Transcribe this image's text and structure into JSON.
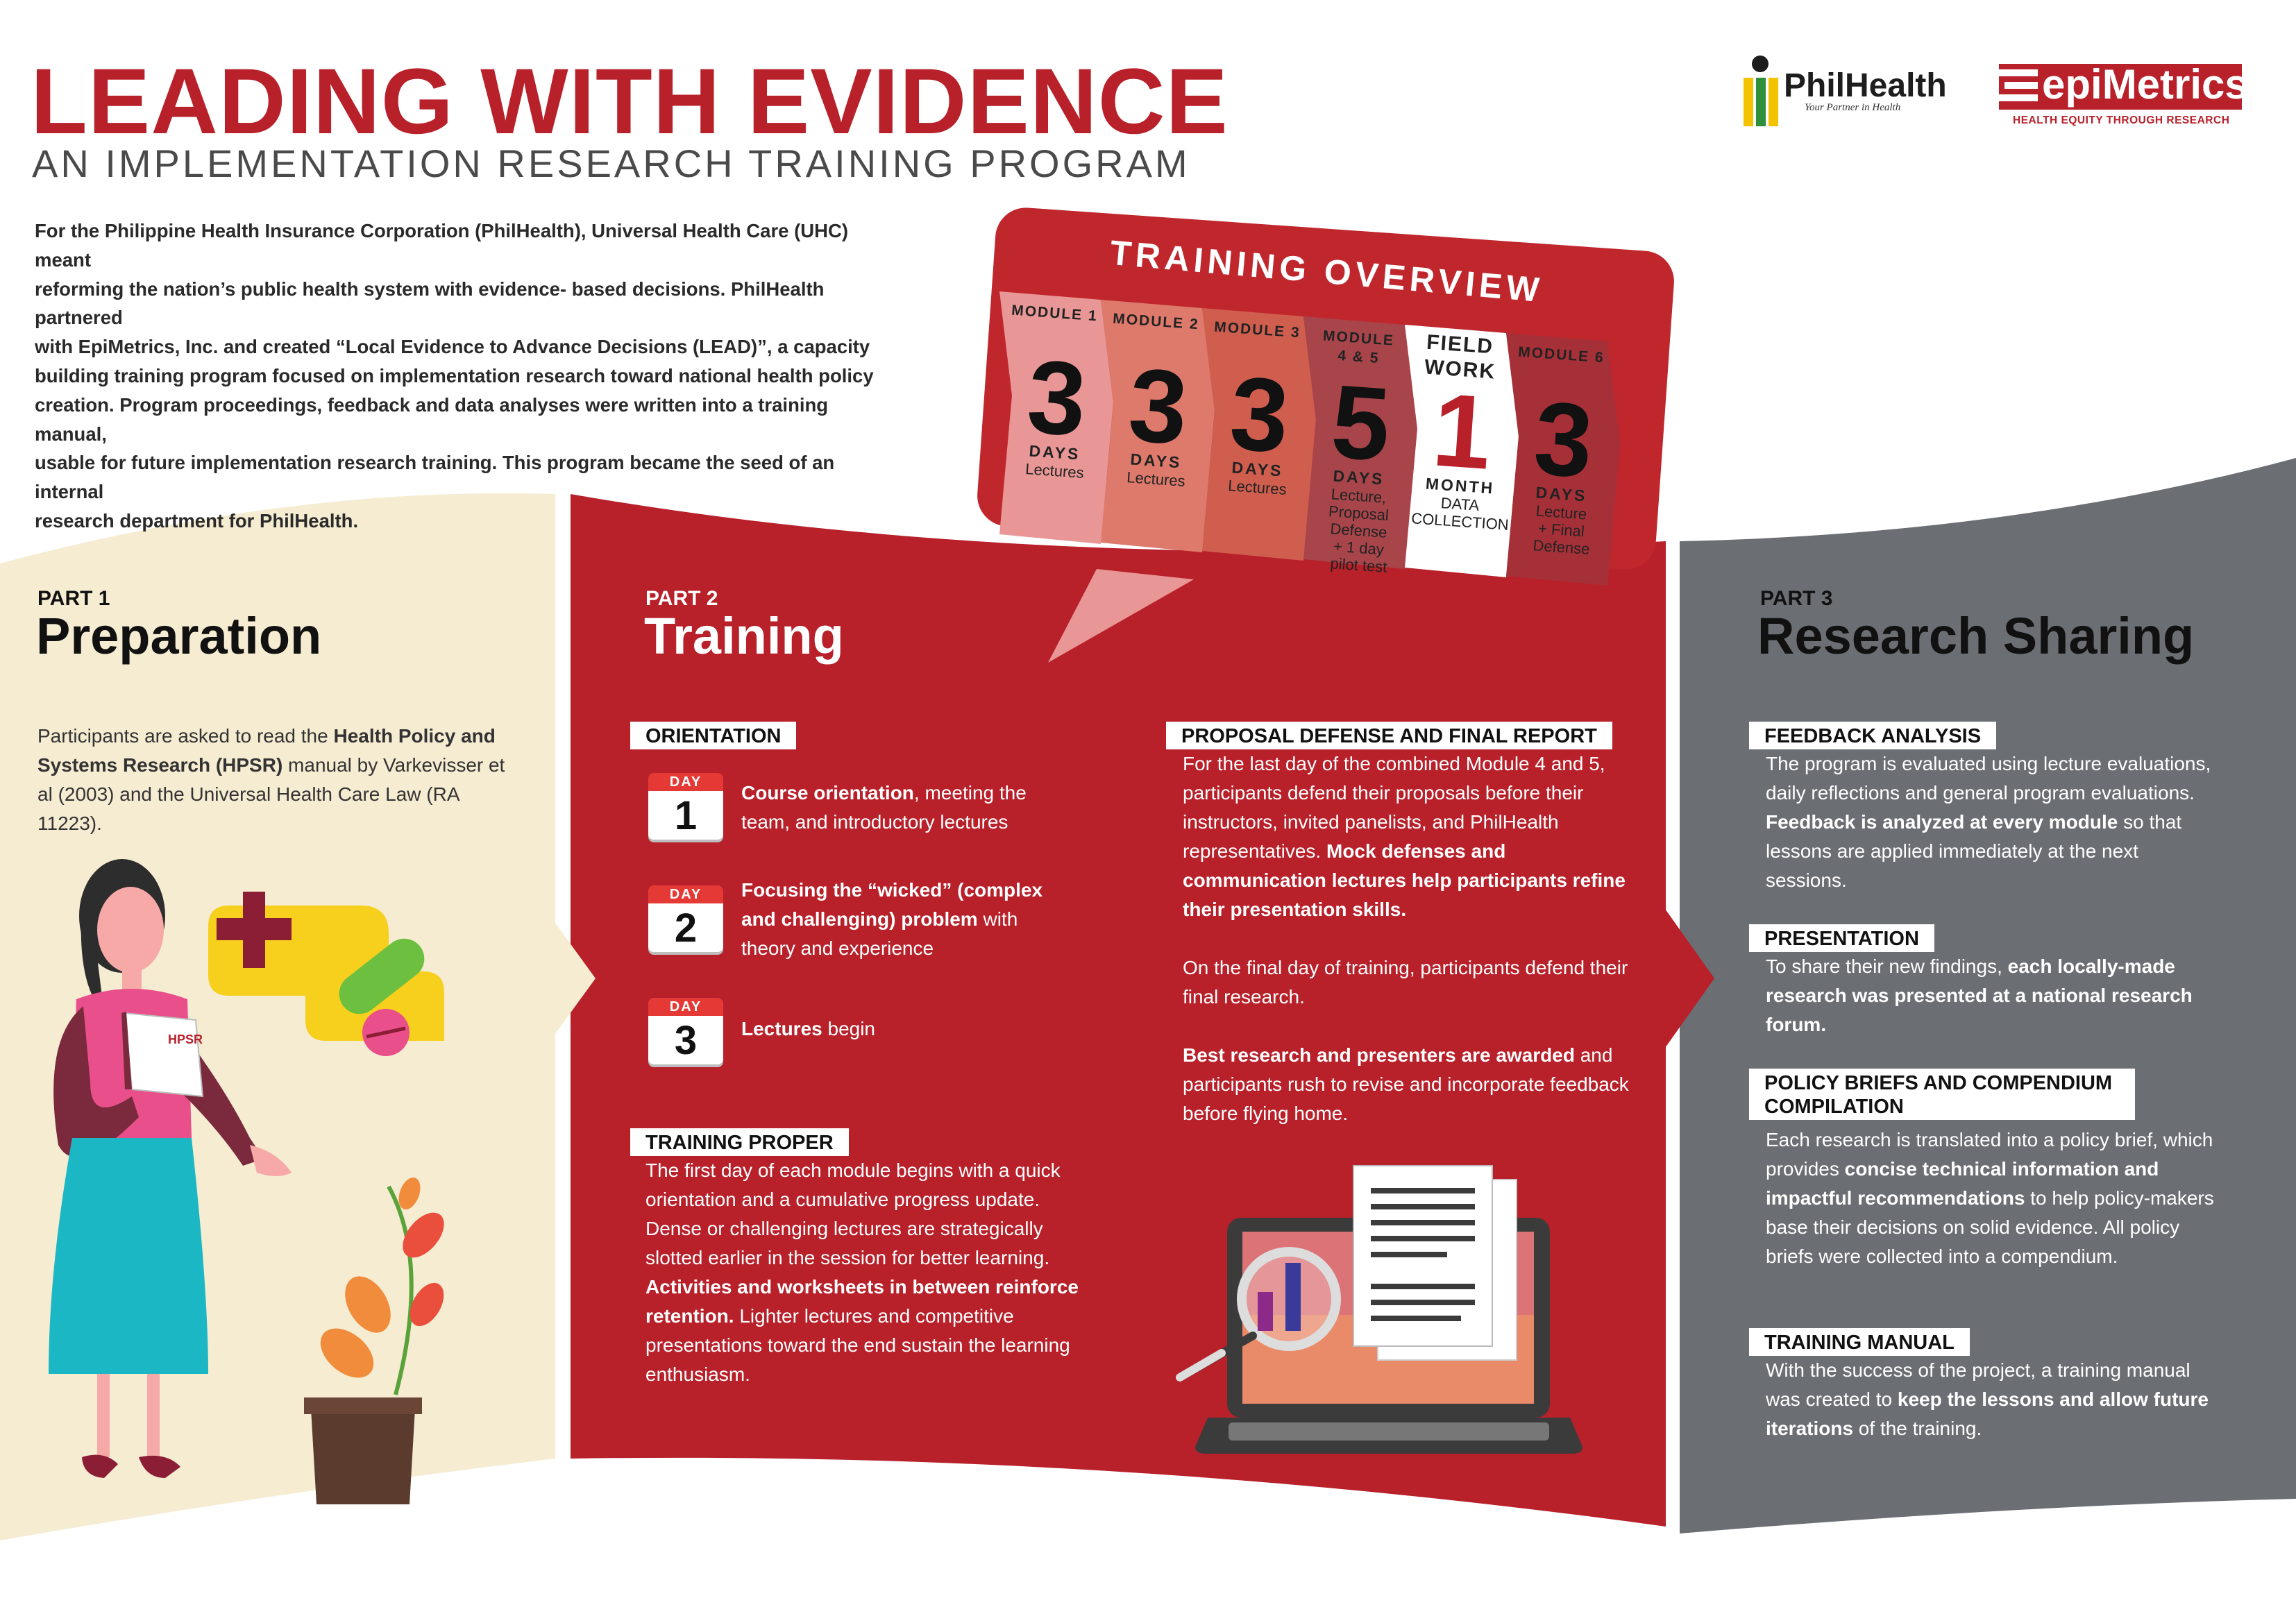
{
  "header": {
    "title": "LEADING WITH EVIDENCE",
    "subtitle": "AN IMPLEMENTATION RESEARCH TRAINING PROGRAM"
  },
  "logos": {
    "philhealth_name": "PhilHealth",
    "philhealth_tagline": "Your Partner in Health",
    "epimetrics_name": "epiMetrics",
    "epimetrics_tagline": "HEALTH EQUITY THROUGH RESEARCH"
  },
  "intro_lines": [
    "For the Philippine Health Insurance Corporation (PhilHealth), Universal Health Care (UHC) meant",
    "reforming the nation’s public health system with evidence- based decisions. PhilHealth partnered",
    "with EpiMetrics, Inc. and created “Local Evidence to Advance Decisions (LEAD)”, a capacity",
    "building training program focused on implementation research toward national health policy",
    "creation. Program proceedings, feedback and data analyses were written into a training manual,",
    "usable for future implementation research training. This program became the seed of an internal",
    "research department for PhilHealth."
  ],
  "overview": {
    "title": "TRAINING OVERVIEW",
    "modules": [
      {
        "label": "MODULE 1",
        "number": "3",
        "unit": "DAYS",
        "desc": [
          "Lectures"
        ]
      },
      {
        "label": "MODULE 2",
        "number": "3",
        "unit": "DAYS",
        "desc": [
          "Lectures"
        ]
      },
      {
        "label": "MODULE 3",
        "number": "3",
        "unit": "DAYS",
        "desc": [
          "Lectures"
        ]
      },
      {
        "label": "MODULE 4 & 5",
        "number": "5",
        "unit": "DAYS",
        "desc": [
          "Lecture,",
          "Proposal",
          "Defense",
          "+ 1 day",
          "pilot test"
        ]
      },
      {
        "label": "FIELD WORK",
        "number": "1",
        "unit": "MONTH",
        "desc": [
          "DATA",
          "COLLECTION"
        ]
      },
      {
        "label": "MODULE 6",
        "number": "3",
        "unit": "DAYS",
        "desc": [
          "Lecture",
          "+ Final",
          "Defense"
        ]
      }
    ]
  },
  "part1": {
    "num": "PART 1",
    "title": "Preparation",
    "body": [
      {
        "t": "Participants are asked to read the ",
        "b": false
      },
      {
        "t": "Health Policy and Systems Research (HPSR)",
        "b": true
      },
      {
        "t": " manual by Varkevisser et al (2003) and the Universal Health Care Law (RA 11223).",
        "b": false
      }
    ],
    "book_label": "HPSR"
  },
  "part2": {
    "num": "PART 2",
    "title": "Training",
    "orientation": {
      "heading": "ORIENTATION",
      "day_word": "DAY",
      "days": [
        {
          "day": "1",
          "text": [
            {
              "t": "Course orientation",
              "b": true
            },
            {
              "t": ", meeting the team, and introductory lectures",
              "b": false
            }
          ]
        },
        {
          "day": "2",
          "text": [
            {
              "t": "Focusing the “wicked” (complex and challenging) problem",
              "b": true
            },
            {
              "t": " with theory and experience",
              "b": false
            }
          ]
        },
        {
          "day": "3",
          "text": [
            {
              "t": "Lectures",
              "b": true
            },
            {
              "t": " begin",
              "b": false
            }
          ]
        }
      ]
    },
    "training_proper": {
      "heading": "TRAINING PROPER",
      "body": [
        {
          "t": "The first day of each module begins with a quick orientation and a cumulative progress update. Dense or challenging lectures are strategically slotted earlier in the session for better learning. ",
          "b": false
        },
        {
          "t": "Activities and worksheets in between reinforce retention.",
          "b": true
        },
        {
          "t": " Lighter lectures and competitive presentations toward the end sustain the learning enthusiasm.",
          "b": false
        }
      ]
    },
    "proposal": {
      "heading": "PROPOSAL DEFENSE AND FINAL REPORT",
      "p1": [
        {
          "t": "For the last day of the combined Module 4 and 5, participants defend their proposals before their instructors, invited panelists, and PhilHealth representatives. ",
          "b": false
        },
        {
          "t": "Mock defenses and communication lectures help participants refine their presentation skills.",
          "b": true
        }
      ],
      "p2": [
        {
          "t": "On the final day of training, participants defend their final research.",
          "b": false
        }
      ],
      "p3": [
        {
          "t": "Best research and presenters are awarded",
          "b": true
        },
        {
          "t": " and participants rush to revise and incorporate feedback before flying home.",
          "b": false
        }
      ]
    }
  },
  "part3": {
    "num": "PART 3",
    "title": "Research Sharing",
    "sections": [
      {
        "heading": "FEEDBACK ANALYSIS",
        "body": [
          {
            "t": "The program is evaluated using lecture evaluations, daily reflections and general program evaluations. ",
            "b": false
          },
          {
            "t": "Feedback is analyzed at every module",
            "b": true
          },
          {
            "t": " so that lessons are applied immediately at the next sessions.",
            "b": false
          }
        ]
      },
      {
        "heading": "PRESENTATION",
        "body": [
          {
            "t": "To share their new findings, ",
            "b": false
          },
          {
            "t": "each locally-made research was presented at a national research forum.",
            "b": true
          }
        ]
      },
      {
        "heading": "POLICY BRIEFS AND COMPENDIUM COMPILATION",
        "body": [
          {
            "t": "Each research is translated into a policy brief, which provides ",
            "b": false
          },
          {
            "t": "concise technical information and impactful recommendations",
            "b": true
          },
          {
            "t": " to help policy-makers base their decisions on solid evidence. All policy briefs were collected into a compendium.",
            "b": false
          }
        ]
      },
      {
        "heading": "TRAINING MANUAL",
        "body": [
          {
            "t": "With the success of the project, a training manual was created to ",
            "b": false
          },
          {
            "t": "keep the lessons and allow future iterations",
            "b": true
          },
          {
            "t": " of the training.",
            "b": false
          }
        ]
      }
    ]
  },
  "colors": {
    "brand_red": "#b8202a",
    "part1_bg": "#f5ecd2",
    "part2_bg": "#b8202a",
    "part3_bg": "#6b6e73",
    "overview_bar": "#c0272d"
  },
  "icons": [
    "philhealth-logo-icon",
    "epimetrics-logo-icon",
    "calendar-icon",
    "laptop-icon",
    "magnifier-icon",
    "document-icon",
    "plant-icon",
    "medicine-icon",
    "woman-reading-illustration",
    "arrow-right-icon"
  ]
}
